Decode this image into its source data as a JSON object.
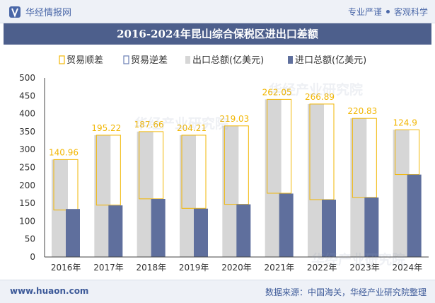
{
  "header": {
    "brand": "华经情报网",
    "tagline_left": "专业严谨",
    "tagline_right": "客观科学"
  },
  "watermarks": [
    "华经产业研究院",
    "华经产业研究院",
    "华经产业研究院"
  ],
  "footer": {
    "url": "www.huaon.com",
    "source": "数据来源：中国海关，华经产业研究院整理"
  },
  "colors": {
    "export_bar": "#d6d6d6",
    "import_bar": "#5f6f9d",
    "surplus_line": "#f2b705",
    "title_bg": "#4d5f8c",
    "deficit_legend": "#6b7fb5"
  },
  "chart_data": {
    "type": "bar",
    "title": "2016-2024年昆山综合保税区进出口差额",
    "categories": [
      "2016年",
      "2017年",
      "2018年",
      "2019年",
      "2020年",
      "2021年",
      "2022年",
      "2023年",
      "2024年"
    ],
    "series": [
      {
        "name": "出口总额(亿美元)",
        "values": [
          272,
          340,
          350,
          340,
          366,
          440,
          427,
          387,
          355
        ]
      },
      {
        "name": "进口总额(亿美元)",
        "values": [
          134,
          144,
          162,
          135,
          147,
          177,
          160,
          166,
          230
        ]
      }
    ],
    "trade_surplus": {
      "name": "贸易顺差",
      "values": [
        140.96,
        195.22,
        187.66,
        204.21,
        219.03,
        262.05,
        266.89,
        220.83,
        124.9
      ],
      "labels": [
        "140.96",
        "195.22",
        "187.66",
        "204.21",
        "219.03",
        "262.05",
        "266.89",
        "220.83",
        "124.9"
      ]
    },
    "trade_deficit": {
      "name": "贸易逆差",
      "values": []
    },
    "y_ticks": [
      "0",
      "50",
      "100",
      "150",
      "200",
      "250",
      "300",
      "350",
      "400",
      "450",
      "500"
    ],
    "ylim": [
      0,
      500
    ],
    "xlabel": "",
    "ylabel": "",
    "grid": false,
    "legend_position": "top"
  }
}
